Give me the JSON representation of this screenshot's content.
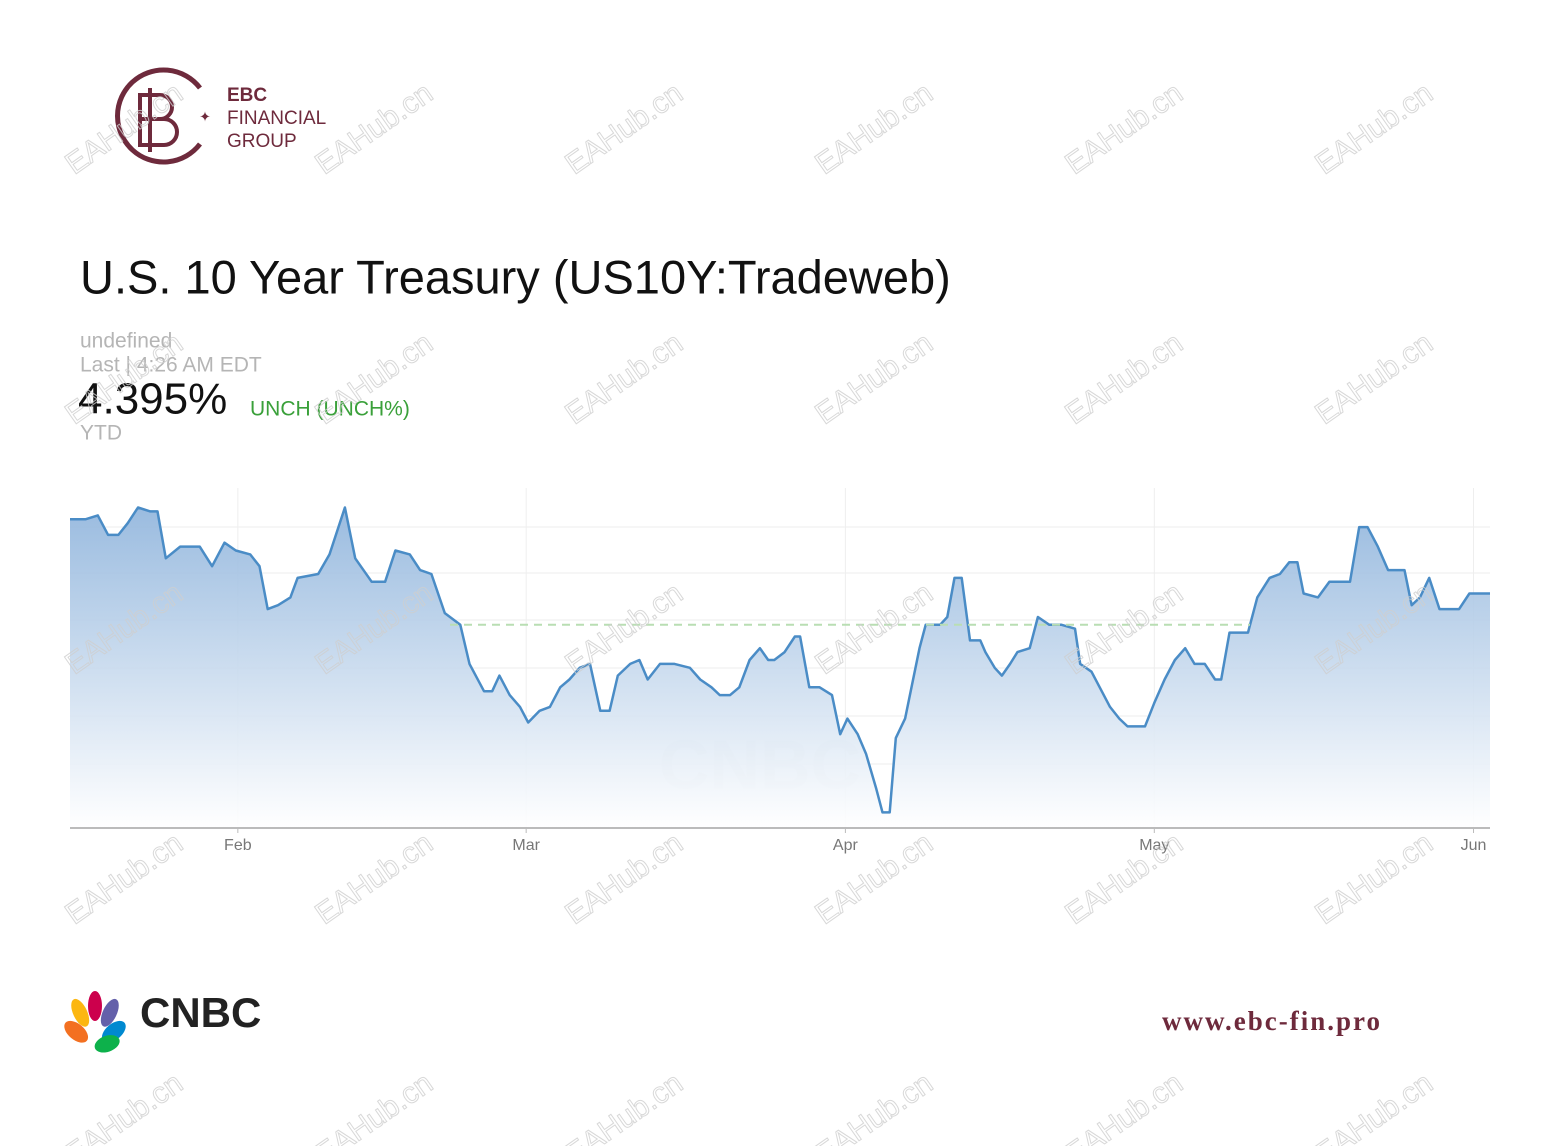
{
  "brand": {
    "name": "EBC",
    "line2": "FINANCIAL",
    "line3": "GROUP"
  },
  "watermark": "EAHub.cn",
  "quote": {
    "undefined_label": "undefined",
    "last": "Last | 4:26 AM EDT",
    "price": "4.395%",
    "change": "UNCH (UNCH%)",
    "range": "YTD"
  },
  "chart_data": {
    "type": "area",
    "title": "U.S. 10 Year Treasury (US10Y:Tradeweb)",
    "x": [
      15.7,
      17.2,
      18.4,
      19.4,
      20.4,
      21.3,
      22.3,
      23.5,
      24.2,
      25.0,
      26.4,
      28.3,
      29.5,
      30.7,
      31.8,
      33.2,
      34.1,
      34.9,
      35.9,
      37.1,
      37.8,
      39.8,
      40.9,
      42.4,
      43.4,
      45.0,
      46.3,
      47.3,
      48.7,
      49.7,
      50.8,
      52.1,
      53.6,
      54.5,
      55.9,
      56.7,
      57.4,
      58.4,
      59.4,
      60.2,
      61.3,
      62.3,
      63.3,
      64.2,
      65.2,
      66.2,
      67.2,
      68.1,
      68.9,
      70.1,
      71.0,
      71.8,
      73.0,
      74.4,
      75.9,
      76.9,
      78.0,
      78.8,
      79.8,
      80.7,
      81.7,
      82.7,
      83.5,
      84.1,
      85.1,
      86.1,
      86.6,
      87.5,
      88.5,
      89.7,
      90.5,
      91.2,
      92.2,
      93.0,
      94.0,
      94.6,
      95.3,
      95.9,
      96.8,
      97.5,
      98.2,
      98.8,
      100.2,
      100.9,
      101.6,
      102.3,
      103.1,
      104.1,
      104.6,
      105.5,
      106.2,
      107.0,
      107.7,
      108.9,
      109.7,
      110.8,
      112.0,
      113.3,
      113.8,
      114.9,
      115.7,
      116.7,
      117.6,
      118.4,
      120.1,
      121.0,
      122.0,
      123.0,
      124.0,
      124.9,
      125.9,
      126.9,
      127.5,
      128.3,
      130.1,
      131.0,
      132.2,
      133.2,
      134.1,
      134.9,
      135.5,
      136.9,
      138.0,
      140.0,
      140.9,
      141.7,
      142.7,
      143.7,
      145.3,
      146.0,
      146.8,
      147.7,
      148.7,
      150.6,
      151.6,
      153.6
    ],
    "series": [
      {
        "color": "#4a8cc6",
        "values": [
          4.76,
          4.76,
          4.77,
          4.72,
          4.72,
          4.75,
          4.79,
          4.78,
          4.78,
          4.66,
          4.69,
          4.69,
          4.64,
          4.7,
          4.68,
          4.67,
          4.64,
          4.53,
          4.54,
          4.56,
          4.61,
          4.62,
          4.67,
          4.79,
          4.66,
          4.6,
          4.6,
          4.68,
          4.67,
          4.63,
          4.62,
          4.52,
          4.49,
          4.39,
          4.32,
          4.32,
          4.36,
          4.31,
          4.28,
          4.24,
          4.27,
          4.28,
          4.33,
          4.35,
          4.38,
          4.39,
          4.27,
          4.27,
          4.36,
          4.39,
          4.4,
          4.35,
          4.39,
          4.39,
          4.38,
          4.35,
          4.33,
          4.31,
          4.31,
          4.33,
          4.4,
          4.43,
          4.4,
          4.4,
          4.42,
          4.46,
          4.46,
          4.33,
          4.33,
          4.31,
          4.21,
          4.25,
          4.21,
          4.16,
          4.07,
          4.01,
          4.01,
          4.2,
          4.25,
          4.34,
          4.43,
          4.49,
          4.49,
          4.51,
          4.61,
          4.61,
          4.45,
          4.45,
          4.42,
          4.38,
          4.36,
          4.39,
          4.42,
          4.43,
          4.51,
          4.49,
          4.49,
          4.48,
          4.39,
          4.37,
          4.33,
          4.28,
          4.25,
          4.23,
          4.23,
          4.29,
          4.35,
          4.4,
          4.43,
          4.39,
          4.39,
          4.35,
          4.35,
          4.47,
          4.47,
          4.56,
          4.61,
          4.62,
          4.65,
          4.65,
          4.57,
          4.56,
          4.6,
          4.6,
          4.74,
          4.74,
          4.69,
          4.63,
          4.63,
          4.54,
          4.56,
          4.61,
          4.53,
          4.53,
          4.57,
          4.57
        ]
      }
    ],
    "reference": 4.49,
    "xlim": [
      15.7,
      153.6
    ],
    "ylim": [
      3.97,
      4.84
    ],
    "xticks": [
      {
        "value": 32,
        "label": "Feb"
      },
      {
        "value": 60,
        "label": "Mar"
      },
      {
        "value": 91,
        "label": "Apr"
      },
      {
        "value": 121,
        "label": "May"
      },
      {
        "value": 152,
        "label": "Jun"
      }
    ],
    "grid": true
  },
  "footer": {
    "source": "CNBC",
    "url": "www.ebc-fin.pro"
  }
}
